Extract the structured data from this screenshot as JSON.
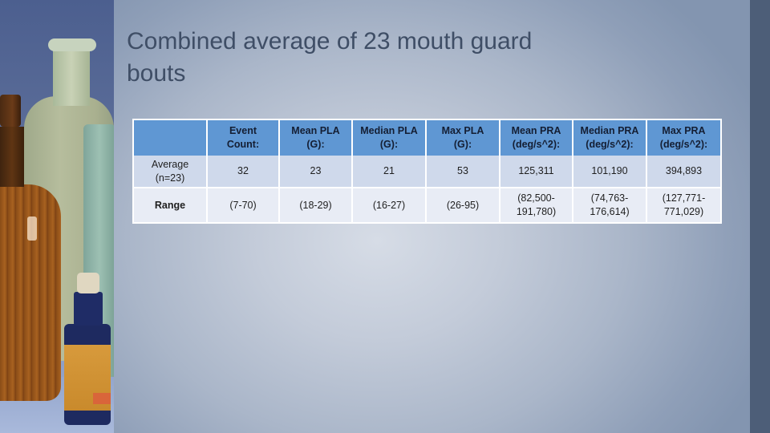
{
  "slide": {
    "title": "Combined average of 23 mouth guard bouts",
    "title_lines": [
      "Combined average of 23 mouth guard",
      "bouts"
    ],
    "colors": {
      "title_text": "#3f4e66",
      "header_bg": "#5f97d3",
      "row_avg_bg": "#cfd9eb",
      "row_range_bg": "#e8ecf5",
      "right_stripe": "#4d5e78"
    },
    "photo": {
      "description": "antique-bottles-photo"
    }
  },
  "table": {
    "headers": [
      {
        "line1": "",
        "line2": ""
      },
      {
        "line1": "Event",
        "line2": "Count:"
      },
      {
        "line1": "Mean PLA",
        "line2": "(G):"
      },
      {
        "line1": "Median PLA",
        "line2": "(G):"
      },
      {
        "line1": "Max PLA",
        "line2": "(G):"
      },
      {
        "line1": "Mean PRA",
        "line2": "(deg/s^2):"
      },
      {
        "line1": "Median PRA",
        "line2": "(deg/s^2):"
      },
      {
        "line1": "Max PRA",
        "line2": "(deg/s^2):"
      }
    ],
    "rows": [
      {
        "label_line1": "Average",
        "label_line2": "(n=23)",
        "cells": [
          {
            "line1": "32",
            "line2": ""
          },
          {
            "line1": "23",
            "line2": ""
          },
          {
            "line1": "21",
            "line2": ""
          },
          {
            "line1": "53",
            "line2": ""
          },
          {
            "line1": "125,311",
            "line2": ""
          },
          {
            "line1": "101,190",
            "line2": ""
          },
          {
            "line1": "394,893",
            "line2": ""
          }
        ]
      },
      {
        "label_line1": "Range",
        "label_line2": "",
        "cells": [
          {
            "line1": "(7-70)",
            "line2": ""
          },
          {
            "line1": "(18-29)",
            "line2": ""
          },
          {
            "line1": "(16-27)",
            "line2": ""
          },
          {
            "line1": "(26-95)",
            "line2": ""
          },
          {
            "line1": "(82,500-",
            "line2": "191,780)"
          },
          {
            "line1": "(74,763-",
            "line2": "176,614)"
          },
          {
            "line1": "(127,771-",
            "line2": "771,029)"
          }
        ]
      }
    ]
  }
}
